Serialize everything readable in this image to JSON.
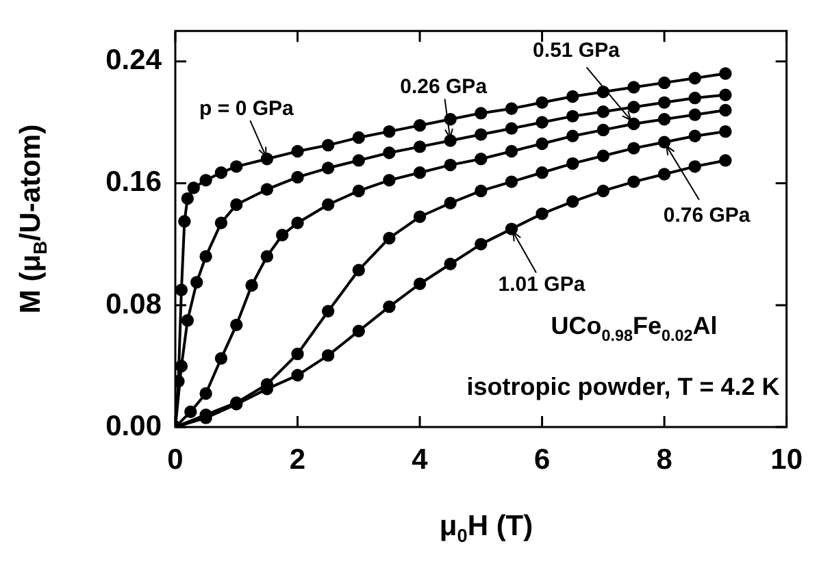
{
  "chart_data": {
    "type": "line",
    "xlabel": "μ$_{0}$H (T)",
    "ylabel": "M (μ$_{B}$/U-atom)",
    "xlim": [
      0,
      10
    ],
    "xticks": [
      0,
      2,
      4,
      6,
      8,
      10
    ],
    "ylim": [
      0,
      0.26
    ],
    "yticks": [
      {
        "value": 0,
        "label": "0.00"
      },
      {
        "value": 0.08,
        "label": "0.08"
      },
      {
        "value": 0.16,
        "label": "0.16"
      },
      {
        "value": 0.24,
        "label": "0.24"
      }
    ],
    "grid": false,
    "legend": false,
    "marker": "circle",
    "line_style": "solid",
    "series": [
      {
        "color": "#000000",
        "x": [
          0,
          0.05,
          0.1,
          0.15,
          0.2,
          0.3,
          0.5,
          0.75,
          1,
          1.5,
          2,
          2.5,
          3,
          3.5,
          4,
          4.5,
          5,
          5.5,
          6,
          6.5,
          7,
          7.5,
          8,
          8.5,
          9
        ],
        "values": [
          0,
          0.03,
          0.09,
          0.135,
          0.15,
          0.157,
          0.162,
          0.167,
          0.171,
          0.176,
          0.181,
          0.185,
          0.19,
          0.194,
          0.198,
          0.202,
          0.206,
          0.209,
          0.213,
          0.217,
          0.22,
          0.223,
          0.226,
          0.229,
          0.232
        ]
      },
      {
        "color": "#000000",
        "x": [
          0,
          0.1,
          0.2,
          0.35,
          0.5,
          0.75,
          1,
          1.5,
          2,
          2.5,
          3,
          3.5,
          4,
          4.5,
          5,
          5.5,
          6,
          6.5,
          7,
          7.5,
          8,
          8.5,
          9
        ],
        "values": [
          0,
          0.04,
          0.07,
          0.095,
          0.112,
          0.134,
          0.146,
          0.156,
          0.164,
          0.17,
          0.175,
          0.18,
          0.184,
          0.188,
          0.192,
          0.196,
          0.2,
          0.204,
          0.207,
          0.21,
          0.213,
          0.216,
          0.218
        ]
      },
      {
        "color": "#000000",
        "x": [
          0,
          0.25,
          0.5,
          0.75,
          1,
          1.25,
          1.5,
          1.75,
          2,
          2.5,
          3,
          3.5,
          4,
          4.5,
          5,
          5.5,
          6,
          6.5,
          7,
          7.5,
          8,
          8.5,
          9
        ],
        "values": [
          0,
          0.01,
          0.022,
          0.045,
          0.067,
          0.093,
          0.112,
          0.126,
          0.134,
          0.146,
          0.155,
          0.162,
          0.167,
          0.172,
          0.176,
          0.181,
          0.186,
          0.191,
          0.195,
          0.199,
          0.202,
          0.205,
          0.208
        ]
      },
      {
        "color": "#000000",
        "x": [
          0,
          0.5,
          1,
          1.5,
          2,
          2.5,
          3,
          3.5,
          4,
          4.5,
          5,
          5.5,
          6,
          6.5,
          7,
          7.5,
          8,
          8.5,
          9
        ],
        "values": [
          0,
          0.008,
          0.016,
          0.028,
          0.048,
          0.076,
          0.103,
          0.124,
          0.138,
          0.147,
          0.155,
          0.161,
          0.167,
          0.173,
          0.178,
          0.183,
          0.187,
          0.191,
          0.194
        ]
      },
      {
        "color": "#000000",
        "x": [
          0,
          0.5,
          1,
          1.5,
          2,
          2.5,
          3,
          3.5,
          4,
          4.5,
          5,
          5.5,
          6,
          6.5,
          7,
          7.5,
          8,
          8.5,
          9
        ],
        "values": [
          0,
          0.006,
          0.015,
          0.025,
          0.034,
          0.047,
          0.063,
          0.079,
          0.094,
          0.107,
          0.12,
          0.13,
          0.14,
          0.148,
          0.155,
          0.161,
          0.166,
          0.171,
          0.175
        ]
      }
    ],
    "annotations": [
      {
        "text": "p = 0 GPa",
        "x": 1.5,
        "y": 0.176
      },
      {
        "text": "0.26 GPa",
        "x": 4.5,
        "y": 0.188
      },
      {
        "text": "0.51 GPa",
        "x": 7.5,
        "y": 0.199
      },
      {
        "text": "0.76 GPa",
        "x": 8,
        "y": 0.187
      },
      {
        "text": "1.01 GPa",
        "x": 5.5,
        "y": 0.13
      },
      "UCo$_{0.98}$Fe$_{0.02}$Al",
      "isotropic powder, T = 4.2 K"
    ]
  }
}
